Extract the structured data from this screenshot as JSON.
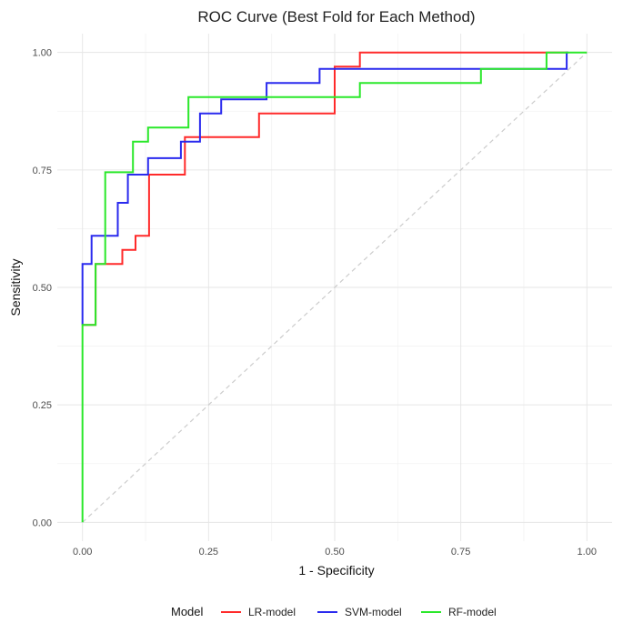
{
  "chart_data": {
    "type": "line",
    "title": "ROC Curve (Best Fold for Each Method)",
    "xlabel": "1 - Specificity",
    "ylabel": "Sensitivity",
    "xlim": [
      -0.05,
      1.05
    ],
    "ylim": [
      -0.04,
      1.04
    ],
    "x_ticks": [
      0.0,
      0.25,
      0.5,
      0.75,
      1.0
    ],
    "x_tick_labels": [
      "0.00",
      "0.25",
      "0.50",
      "0.75",
      "1.00"
    ],
    "y_ticks": [
      0.0,
      0.25,
      0.5,
      0.75,
      1.0
    ],
    "y_tick_labels": [
      "0.00",
      "0.25",
      "0.50",
      "0.75",
      "1.00"
    ],
    "grid": true,
    "legend": {
      "title": "Model",
      "position": "bottom"
    },
    "reference_line": {
      "x": [
        0,
        1
      ],
      "y": [
        0,
        1
      ],
      "style": "dashed",
      "color": "#cccccc"
    },
    "series": [
      {
        "name": "LR-model",
        "color": "#ff2a2a",
        "x": [
          0.0,
          0.0,
          0.026,
          0.026,
          0.079,
          0.079,
          0.105,
          0.105,
          0.132,
          0.132,
          0.203,
          0.203,
          0.35,
          0.35,
          0.5,
          0.5,
          0.55,
          0.55,
          0.963
        ],
        "y": [
          0.42,
          0.42,
          0.42,
          0.55,
          0.55,
          0.58,
          0.58,
          0.61,
          0.61,
          0.74,
          0.74,
          0.82,
          0.82,
          0.87,
          0.87,
          0.97,
          0.97,
          1.0,
          1.0
        ]
      },
      {
        "name": "SVM-model",
        "color": "#2a2aee",
        "x": [
          0.0,
          0.0,
          0.018,
          0.018,
          0.07,
          0.07,
          0.09,
          0.09,
          0.13,
          0.13,
          0.195,
          0.195,
          0.233,
          0.233,
          0.275,
          0.275,
          0.365,
          0.365,
          0.47,
          0.47,
          0.79,
          0.79,
          0.96,
          0.96,
          0.963
        ],
        "y": [
          0.42,
          0.55,
          0.55,
          0.61,
          0.61,
          0.68,
          0.68,
          0.74,
          0.74,
          0.775,
          0.775,
          0.81,
          0.81,
          0.87,
          0.87,
          0.9,
          0.9,
          0.935,
          0.935,
          0.965,
          0.965,
          0.965,
          0.965,
          1.0,
          1.0
        ]
      },
      {
        "name": "RF-model",
        "color": "#2ae82a",
        "x": [
          0.0,
          0.0,
          0.026,
          0.026,
          0.045,
          0.045,
          0.1,
          0.1,
          0.13,
          0.13,
          0.21,
          0.21,
          0.55,
          0.55,
          0.79,
          0.79,
          0.92,
          0.92,
          1.0
        ],
        "y": [
          0.0,
          0.42,
          0.42,
          0.55,
          0.55,
          0.745,
          0.745,
          0.81,
          0.81,
          0.84,
          0.84,
          0.905,
          0.905,
          0.935,
          0.935,
          0.965,
          0.965,
          1.0,
          1.0
        ]
      }
    ]
  }
}
